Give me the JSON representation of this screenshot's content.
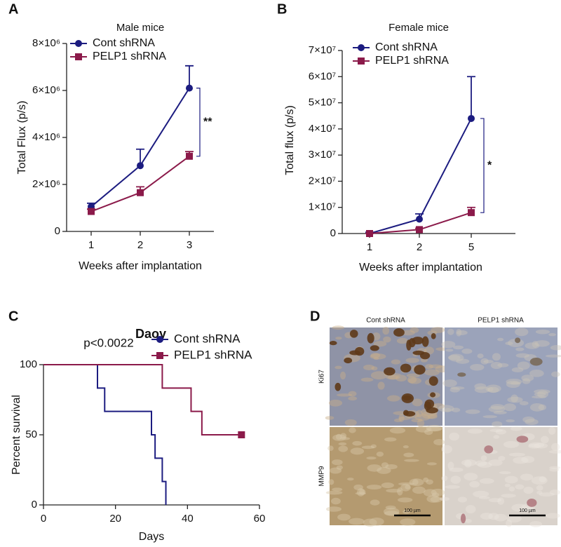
{
  "figure": {
    "panel_labels": [
      "A",
      "B",
      "C",
      "D"
    ]
  },
  "chart_data": [
    {
      "type": "line",
      "title": "Male mice",
      "x_label": "Weeks after implantation",
      "y_label": "Total Flux  (p/s)",
      "categories": [
        "1",
        "2",
        "3"
      ],
      "ylim": [
        0,
        8000000
      ],
      "yticks": [
        0,
        {
          "value": 2000000,
          "label": "2×10⁶"
        },
        {
          "value": 4000000,
          "label": "4×10⁶"
        },
        {
          "value": 6000000,
          "label": "6×10⁶"
        },
        {
          "value": 8000000,
          "label": "8×10⁶"
        }
      ],
      "series": [
        {
          "name": "Cont shRNA",
          "color": "#1c1c80",
          "label_color": "#2a2ad0",
          "marker": "circle",
          "values": [
            1050000,
            2800000,
            6100000
          ],
          "errors": [
            150000,
            700000,
            950000
          ]
        },
        {
          "name": "PELP1 shRNA",
          "color": "#8b1a4a",
          "label_color": "#8b1a4a",
          "marker": "square",
          "values": [
            850000,
            1650000,
            3200000
          ],
          "errors": [
            100000,
            250000,
            200000
          ]
        }
      ],
      "annotation": "**"
    },
    {
      "type": "line",
      "title": "Female mice",
      "x_label": "Weeks after implantation",
      "y_label": "Total flux (p/s)",
      "categories": [
        "1",
        "2",
        "5"
      ],
      "ylim": [
        0,
        70000000
      ],
      "yticks": [
        0,
        {
          "value": 10000000,
          "label": "1×10⁷"
        },
        {
          "value": 20000000,
          "label": "2×10⁷"
        },
        {
          "value": 30000000,
          "label": "3×10⁷"
        },
        {
          "value": 40000000,
          "label": "4×10⁷"
        },
        {
          "value": 50000000,
          "label": "5×10⁷"
        },
        {
          "value": 60000000,
          "label": "6×10⁷"
        },
        {
          "value": 70000000,
          "label": "7×10⁷"
        }
      ],
      "series": [
        {
          "name": "Cont shRNA",
          "color": "#1c1c80",
          "label_color": "#2a2ad0",
          "marker": "circle",
          "values": [
            0,
            5500000,
            44000000
          ],
          "errors": [
            500000,
            2000000,
            16000000
          ]
        },
        {
          "name": "PELP1 shRNA",
          "color": "#8b1a4a",
          "label_color": "#8b1a4a",
          "marker": "square",
          "values": [
            0,
            1500000,
            8000000
          ],
          "errors": [
            0,
            500000,
            2000000
          ]
        }
      ],
      "annotation": "*"
    },
    {
      "type": "step",
      "title": "Daoy",
      "x_label": "Days",
      "y_label": "Percent survival",
      "xlim": [
        0,
        60
      ],
      "xticks": [
        0,
        20,
        40,
        60
      ],
      "ylim": [
        0,
        100
      ],
      "yticks": [
        0,
        50,
        100
      ],
      "series": [
        {
          "name": "Cont shRNA",
          "color": "#1c1c80",
          "label_color": "#2a2ad0",
          "marker": "circle",
          "end_marker": false,
          "x": [
            0,
            15,
            17,
            30,
            31,
            33,
            34
          ],
          "values": [
            100,
            83.3,
            66.7,
            50,
            33.3,
            16.7,
            0
          ]
        },
        {
          "name": "PELP1 shRNA",
          "color": "#8b1a4a",
          "label_color": "#8b1a4a",
          "marker": "square",
          "end_marker": true,
          "x": [
            0,
            33,
            41,
            44,
            55
          ],
          "values": [
            100,
            83.3,
            66.7,
            50,
            50
          ]
        }
      ],
      "annotation": "p<0.0022"
    }
  ],
  "micrograph": {
    "columns": [
      "Cont shRNA",
      "PELP1 shRNA"
    ],
    "rows": [
      "Ki67",
      "MMP9"
    ],
    "scale_bar": "100 µm"
  }
}
